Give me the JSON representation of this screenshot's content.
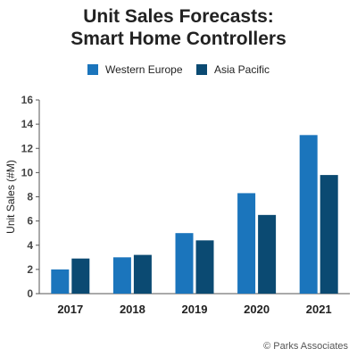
{
  "chart_data": {
    "type": "bar",
    "title_lines": [
      "Unit Sales Forecasts:",
      "Smart Home Controllers"
    ],
    "xlabel": "",
    "ylabel": "Unit Sales (#M)",
    "ylim": [
      0,
      16
    ],
    "yticks": [
      "0",
      "2",
      "4",
      "6",
      "8",
      "10",
      "12",
      "14",
      "16"
    ],
    "categories": [
      "2017",
      "2018",
      "2019",
      "2020",
      "2021"
    ],
    "series": [
      {
        "name": "Western Europe",
        "color": "#1b75bc",
        "values": [
          2.0,
          3.0,
          5.0,
          8.3,
          13.1
        ]
      },
      {
        "name": "Asia Pacific",
        "color": "#0b4a72",
        "values": [
          2.9,
          3.2,
          4.4,
          6.5,
          9.8
        ]
      }
    ],
    "grid": false,
    "legend_position": "top"
  },
  "credit": "© Parks Associates"
}
